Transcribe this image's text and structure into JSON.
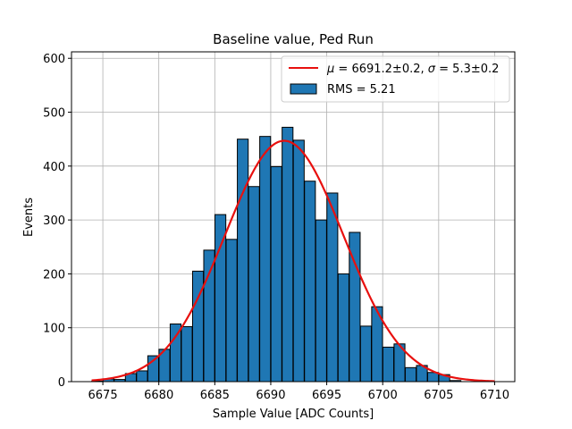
{
  "chart_data": {
    "type": "bar",
    "title": "Baseline value, Ped Run",
    "xlabel": "Sample Value [ADC Counts]",
    "ylabel": "Events",
    "xlim": [
      6672.2,
      6711.8
    ],
    "ylim": [
      0,
      612
    ],
    "xticks": [
      6675,
      6680,
      6685,
      6690,
      6695,
      6700,
      6705,
      6710
    ],
    "yticks": [
      0,
      100,
      200,
      300,
      400,
      500,
      600
    ],
    "grid": true,
    "legend_position": "top-right",
    "bin_width": 0.97,
    "bins": [
      {
        "x": 6674.5,
        "count": 1
      },
      {
        "x": 6675.5,
        "count": 5
      },
      {
        "x": 6676.5,
        "count": 4
      },
      {
        "x": 6677.5,
        "count": 15
      },
      {
        "x": 6678.5,
        "count": 20
      },
      {
        "x": 6679.5,
        "count": 48
      },
      {
        "x": 6680.5,
        "count": 60
      },
      {
        "x": 6681.5,
        "count": 107
      },
      {
        "x": 6682.5,
        "count": 102
      },
      {
        "x": 6683.5,
        "count": 205
      },
      {
        "x": 6684.5,
        "count": 244
      },
      {
        "x": 6685.5,
        "count": 310
      },
      {
        "x": 6686.5,
        "count": 264
      },
      {
        "x": 6687.5,
        "count": 450
      },
      {
        "x": 6688.5,
        "count": 362
      },
      {
        "x": 6689.5,
        "count": 455
      },
      {
        "x": 6690.5,
        "count": 399
      },
      {
        "x": 6691.5,
        "count": 472
      },
      {
        "x": 6692.5,
        "count": 448
      },
      {
        "x": 6693.5,
        "count": 372
      },
      {
        "x": 6694.5,
        "count": 300
      },
      {
        "x": 6695.5,
        "count": 350
      },
      {
        "x": 6696.5,
        "count": 200
      },
      {
        "x": 6697.5,
        "count": 277
      },
      {
        "x": 6698.5,
        "count": 103
      },
      {
        "x": 6699.5,
        "count": 139
      },
      {
        "x": 6700.5,
        "count": 64
      },
      {
        "x": 6701.5,
        "count": 70
      },
      {
        "x": 6702.5,
        "count": 26
      },
      {
        "x": 6703.5,
        "count": 30
      },
      {
        "x": 6704.5,
        "count": 17
      },
      {
        "x": 6705.5,
        "count": 13
      },
      {
        "x": 6706.5,
        "count": 2
      }
    ],
    "fit": {
      "mu": 6691.2,
      "sigma": 5.3,
      "amplitude": 447,
      "x_range": [
        6674,
        6710
      ]
    },
    "legend": {
      "fit_prefix_mu": "μ",
      "fit_value_mu": " = 6691.2±0.2, ",
      "fit_prefix_sigma": "σ",
      "fit_value_sigma": " = 5.3±0.2",
      "hist_label": "RMS = 5.21"
    },
    "colors": {
      "bar_fill": "#1f77b4",
      "bar_edge": "#000000",
      "fit_line": "#e8100e",
      "grid": "#b0b0b0"
    }
  }
}
